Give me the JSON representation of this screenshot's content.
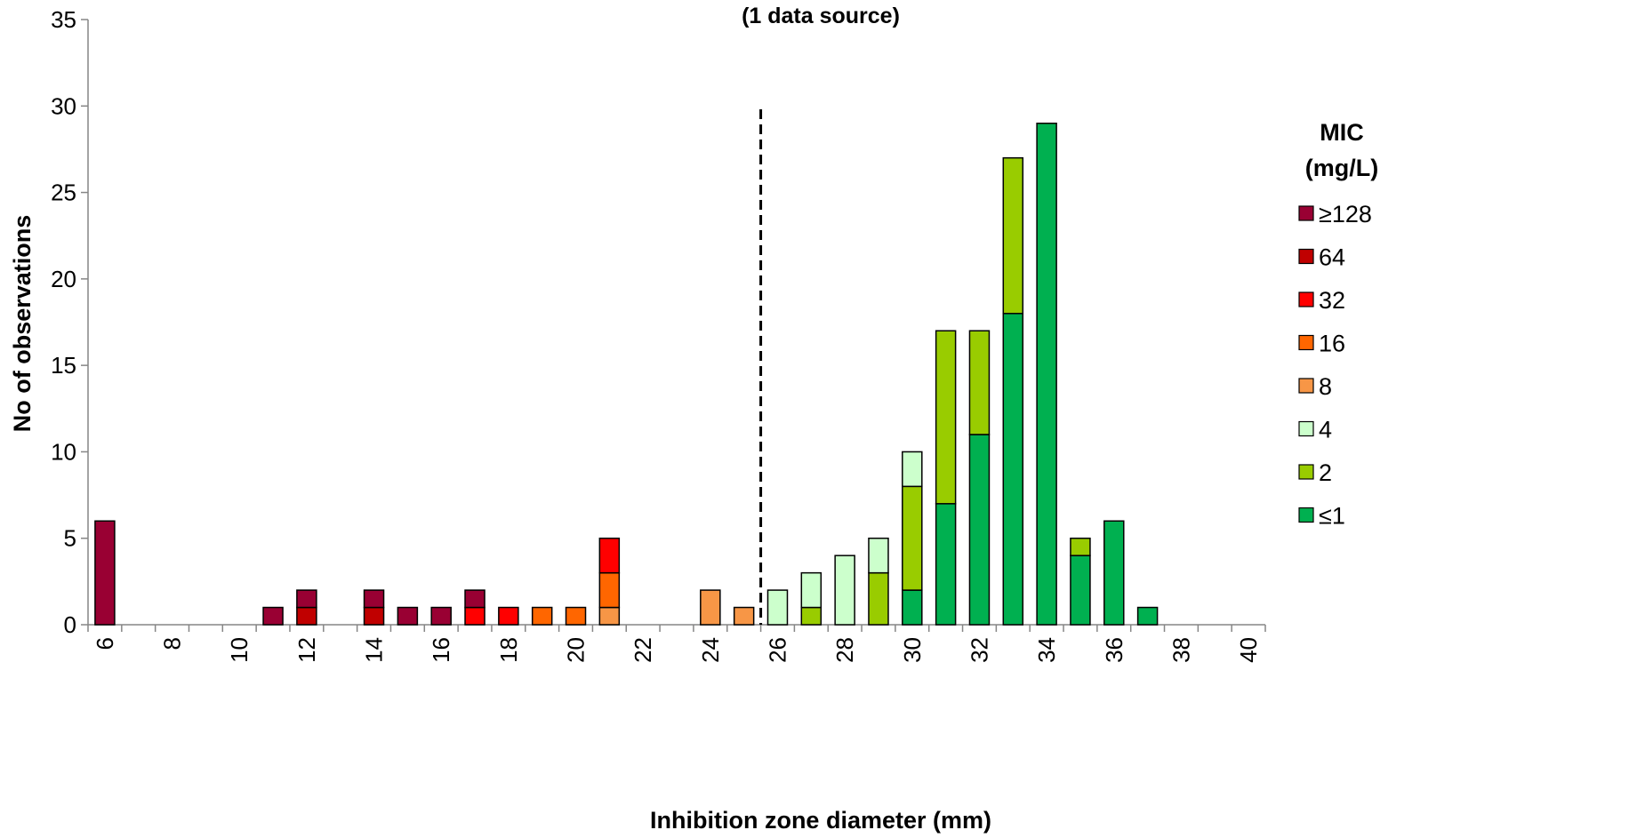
{
  "chart_data": {
    "type": "bar",
    "stacked": true,
    "subtitle": "(1 data source)",
    "xlabel": "Inhibition zone diameter (mm)",
    "ylabel": "No of observations",
    "ylim": [
      0,
      35
    ],
    "yticks": [
      0,
      5,
      10,
      15,
      20,
      25,
      30,
      35
    ],
    "categories": [
      6,
      7,
      8,
      9,
      10,
      11,
      12,
      13,
      14,
      15,
      16,
      17,
      18,
      19,
      20,
      21,
      22,
      23,
      24,
      25,
      26,
      27,
      28,
      29,
      30,
      31,
      32,
      33,
      34,
      35,
      36,
      37,
      38,
      39,
      40
    ],
    "x_tick_labels": [
      "6",
      "8",
      "10",
      "12",
      "14",
      "16",
      "18",
      "20",
      "22",
      "24",
      "26",
      "28",
      "30",
      "32",
      "34",
      "36",
      "38",
      "40"
    ],
    "breakpoint_line": 25.5,
    "legend_title": "MIC\n(mg/L)",
    "legend_position": "right",
    "series": [
      {
        "name": "≤1",
        "color": "#00b050",
        "values": [
          0,
          0,
          0,
          0,
          0,
          0,
          0,
          0,
          0,
          0,
          0,
          0,
          0,
          0,
          0,
          0,
          0,
          0,
          0,
          0,
          0,
          0,
          0,
          0,
          2,
          7,
          11,
          18,
          29,
          4,
          6,
          1,
          0,
          0,
          0
        ]
      },
      {
        "name": "2",
        "color": "#99cc00",
        "values": [
          0,
          0,
          0,
          0,
          0,
          0,
          0,
          0,
          0,
          0,
          0,
          0,
          0,
          0,
          0,
          0,
          0,
          0,
          0,
          0,
          0,
          1,
          0,
          3,
          6,
          10,
          6,
          9,
          0,
          1,
          0,
          0,
          0,
          0,
          0
        ]
      },
      {
        "name": "4",
        "color": "#ccffcc",
        "values": [
          0,
          0,
          0,
          0,
          0,
          0,
          0,
          0,
          0,
          0,
          0,
          0,
          0,
          0,
          0,
          0,
          0,
          0,
          0,
          0,
          2,
          2,
          4,
          2,
          2,
          0,
          0,
          0,
          0,
          0,
          0,
          0,
          0,
          0,
          0
        ]
      },
      {
        "name": "8",
        "color": "#f79646",
        "values": [
          0,
          0,
          0,
          0,
          0,
          0,
          0,
          0,
          0,
          0,
          0,
          0,
          0,
          0,
          0,
          1,
          0,
          0,
          2,
          1,
          0,
          0,
          0,
          0,
          0,
          0,
          0,
          0,
          0,
          0,
          0,
          0,
          0,
          0,
          0
        ]
      },
      {
        "name": "16",
        "color": "#ff6600",
        "values": [
          0,
          0,
          0,
          0,
          0,
          0,
          0,
          0,
          0,
          0,
          0,
          0,
          0,
          1,
          1,
          2,
          0,
          0,
          0,
          0,
          0,
          0,
          0,
          0,
          0,
          0,
          0,
          0,
          0,
          0,
          0,
          0,
          0,
          0,
          0
        ]
      },
      {
        "name": "32",
        "color": "#ff0000",
        "values": [
          0,
          0,
          0,
          0,
          0,
          0,
          0,
          0,
          0,
          0,
          0,
          1,
          1,
          0,
          0,
          2,
          0,
          0,
          0,
          0,
          0,
          0,
          0,
          0,
          0,
          0,
          0,
          0,
          0,
          0,
          0,
          0,
          0,
          0,
          0
        ]
      },
      {
        "name": "64",
        "color": "#c00000",
        "values": [
          0,
          0,
          0,
          0,
          0,
          0,
          1,
          0,
          1,
          0,
          0,
          0,
          0,
          0,
          0,
          0,
          0,
          0,
          0,
          0,
          0,
          0,
          0,
          0,
          0,
          0,
          0,
          0,
          0,
          0,
          0,
          0,
          0,
          0,
          0
        ]
      },
      {
        "name": "≥128",
        "color": "#990033",
        "values": [
          6,
          0,
          0,
          0,
          0,
          1,
          1,
          0,
          1,
          1,
          1,
          1,
          0,
          0,
          0,
          0,
          0,
          0,
          0,
          0,
          0,
          0,
          0,
          0,
          0,
          0,
          0,
          0,
          0,
          0,
          0,
          0,
          0,
          0,
          0
        ]
      }
    ],
    "grid": false
  }
}
